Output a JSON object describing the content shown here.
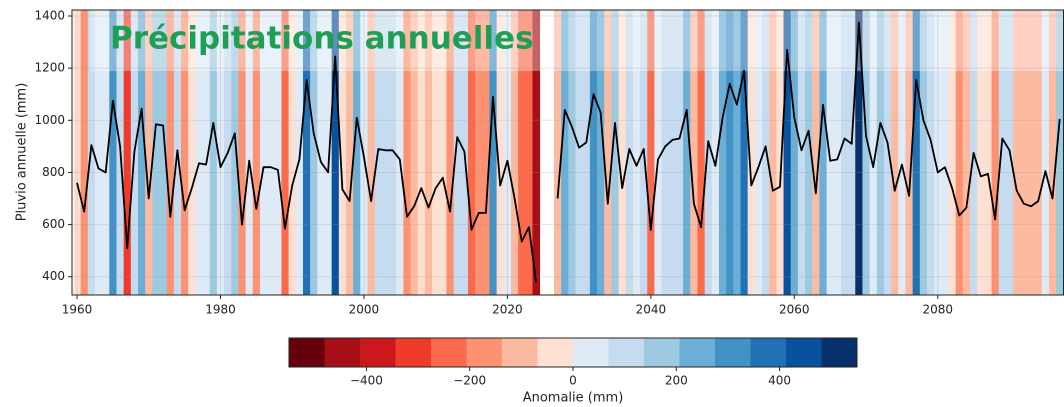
{
  "chart_data": {
    "type": "line",
    "title": "Précipitations annuelles",
    "y_label": "Pluvio annuelle (mm)",
    "x": [
      1960,
      1961,
      1962,
      1963,
      1964,
      1965,
      1966,
      1967,
      1968,
      1969,
      1970,
      1971,
      1972,
      1973,
      1974,
      1975,
      1976,
      1977,
      1978,
      1979,
      1980,
      1981,
      1982,
      1983,
      1984,
      1985,
      1986,
      1987,
      1988,
      1989,
      1990,
      1991,
      1992,
      1993,
      1994,
      1995,
      1996,
      1997,
      1998,
      1999,
      2000,
      2001,
      2002,
      2003,
      2004,
      2005,
      2006,
      2007,
      2008,
      2009,
      2010,
      2011,
      2012,
      2013,
      2014,
      2015,
      2016,
      2017,
      2018,
      2019,
      2020,
      2021,
      2022,
      2023,
      2024,
      2025,
      2026,
      2027,
      2028,
      2029,
      2030,
      2031,
      2032,
      2033,
      2034,
      2035,
      2036,
      2037,
      2038,
      2039,
      2040,
      2041,
      2042,
      2043,
      2044,
      2045,
      2046,
      2047,
      2048,
      2049,
      2050,
      2051,
      2052,
      2053,
      2054,
      2055,
      2056,
      2057,
      2058,
      2059,
      2060,
      2061,
      2062,
      2063,
      2064,
      2065,
      2066,
      2067,
      2068,
      2069,
      2070,
      2071,
      2072,
      2073,
      2074,
      2075,
      2076,
      2077,
      2078,
      2079,
      2080,
      2081,
      2082,
      2083,
      2084,
      2085,
      2086,
      2087,
      2088,
      2089,
      2090,
      2091,
      2092,
      2093,
      2094,
      2095,
      2096,
      2097
    ],
    "values": [
      760,
      650,
      905,
      815,
      800,
      1075,
      900,
      510,
      880,
      1045,
      700,
      985,
      980,
      630,
      885,
      655,
      740,
      835,
      830,
      990,
      820,
      875,
      950,
      600,
      845,
      660,
      820,
      820,
      810,
      585,
      750,
      850,
      1155,
      950,
      840,
      800,
      1245,
      735,
      690,
      1010,
      860,
      690,
      890,
      885,
      885,
      850,
      630,
      670,
      740,
      665,
      740,
      780,
      650,
      935,
      880,
      580,
      645,
      645,
      1090,
      750,
      845,
      700,
      535,
      590,
      380,
      null,
      null,
      700,
      1040,
      975,
      895,
      915,
      1100,
      1030,
      680,
      990,
      740,
      890,
      825,
      890,
      580,
      850,
      900,
      925,
      930,
      1040,
      680,
      590,
      920,
      825,
      1010,
      1140,
      1060,
      1190,
      750,
      820,
      900,
      730,
      745,
      1270,
      1010,
      885,
      960,
      720,
      1060,
      845,
      850,
      930,
      910,
      1375,
      940,
      820,
      990,
      915,
      730,
      830,
      710,
      1155,
      1000,
      925,
      800,
      820,
      740,
      635,
      665,
      875,
      785,
      795,
      620,
      930,
      885,
      730,
      680,
      670,
      690,
      805,
      700,
      1005
    ],
    "line_color": "#000000",
    "anomaly": [
      -40,
      -150,
      105,
      15,
      0,
      275,
      100,
      -290,
      80,
      245,
      -100,
      185,
      180,
      -170,
      85,
      -145,
      -60,
      35,
      30,
      190,
      20,
      75,
      150,
      -200,
      45,
      -140,
      20,
      20,
      10,
      -215,
      -50,
      50,
      355,
      150,
      40,
      0,
      445,
      -65,
      -110,
      210,
      60,
      -110,
      90,
      85,
      85,
      50,
      -170,
      -130,
      -60,
      -135,
      -60,
      -20,
      -150,
      135,
      80,
      -220,
      -155,
      -155,
      290,
      -50,
      45,
      -100,
      -265,
      -210,
      -420,
      null,
      null,
      -100,
      240,
      175,
      95,
      115,
      300,
      230,
      -120,
      190,
      -60,
      90,
      25,
      90,
      -220,
      50,
      100,
      125,
      130,
      240,
      -120,
      -210,
      120,
      25,
      210,
      340,
      260,
      390,
      -50,
      20,
      100,
      -70,
      -55,
      470,
      210,
      85,
      160,
      -80,
      260,
      45,
      50,
      130,
      110,
      575,
      140,
      20,
      190,
      115,
      -70,
      30,
      -90,
      355,
      200,
      125,
      0,
      20,
      -60,
      -165,
      -135,
      75,
      -15,
      -5,
      -180,
      130,
      85,
      -70,
      -120,
      -130,
      -110,
      5,
      -100,
      205
    ],
    "xlim": [
      1959.3,
      2097.6
    ],
    "ylim": [
      330,
      1423
    ],
    "xticks": [
      1960,
      1980,
      2000,
      2020,
      2040,
      2060,
      2080
    ],
    "yticks": [
      400,
      600,
      800,
      1000,
      1200,
      1400
    ],
    "colorbar": {
      "label": "Anomalie (mm)",
      "clim": [
        -550,
        550
      ],
      "ticks": [
        {
          "value": -400,
          "label": "−400"
        },
        {
          "value": -200,
          "label": "−200"
        },
        0,
        200,
        400
      ],
      "colors": [
        "#67000d",
        "#a50f15",
        "#cb181d",
        "#ef3b2c",
        "#fb6a4a",
        "#fc9272",
        "#fcbba1",
        "#fee0d2",
        "#deebf7",
        "#c6dbef",
        "#9ecae1",
        "#6baed6",
        "#4292c6",
        "#2171b5",
        "#08519c",
        "#08306b"
      ]
    }
  }
}
